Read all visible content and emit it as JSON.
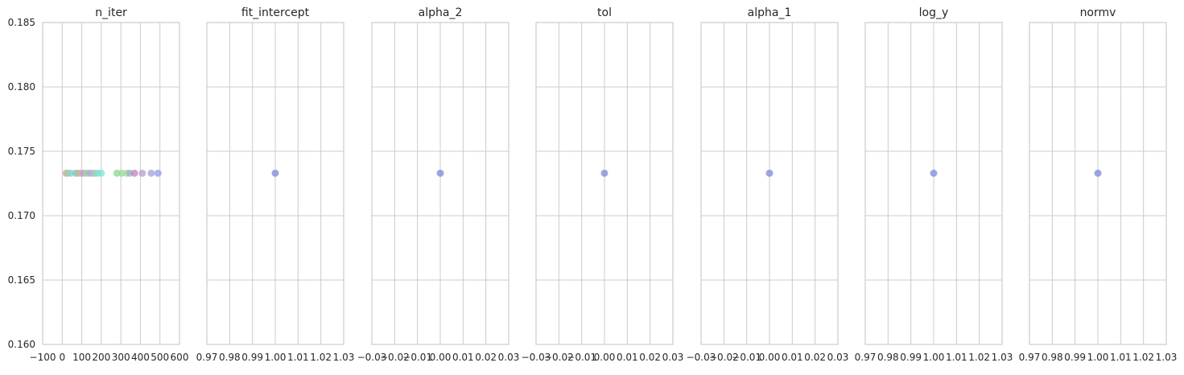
{
  "chart_data": [
    {
      "type": "scatter",
      "title": "n_iter",
      "xlim": [
        -100,
        600
      ],
      "xticks": [
        -100,
        0,
        100,
        200,
        300,
        400,
        500,
        600
      ],
      "xticklabels": [
        "−100",
        "0",
        "100",
        "200",
        "300",
        "400",
        "500",
        "600"
      ],
      "ylim": [
        0.16,
        0.185
      ],
      "yticks": [
        0.16,
        0.165,
        0.17,
        0.175,
        0.18,
        0.185
      ],
      "yticklabels": [
        "0.160",
        "0.165",
        "0.170",
        "0.175",
        "0.180",
        "0.185"
      ],
      "grid": true,
      "points": [
        {
          "x": 20,
          "y": 0.1733,
          "color": "#e09a9a"
        },
        {
          "x": 30,
          "y": 0.1733,
          "color": "#9ad0a0"
        },
        {
          "x": 45,
          "y": 0.1733,
          "color": "#7fd9c0"
        },
        {
          "x": 70,
          "y": 0.1733,
          "color": "#9ab0e0"
        },
        {
          "x": 80,
          "y": 0.1733,
          "color": "#8ad88a"
        },
        {
          "x": 95,
          "y": 0.1733,
          "color": "#e0a6a6"
        },
        {
          "x": 110,
          "y": 0.1733,
          "color": "#c09ad8"
        },
        {
          "x": 125,
          "y": 0.1733,
          "color": "#a6d68a"
        },
        {
          "x": 140,
          "y": 0.1733,
          "color": "#8ab8e0"
        },
        {
          "x": 155,
          "y": 0.1733,
          "color": "#d8a0c8"
        },
        {
          "x": 170,
          "y": 0.1733,
          "color": "#8ad8b8"
        },
        {
          "x": 185,
          "y": 0.1733,
          "color": "#7fe0d0"
        },
        {
          "x": 200,
          "y": 0.1733,
          "color": "#80e6d8"
        },
        {
          "x": 280,
          "y": 0.1733,
          "color": "#8ad88a"
        },
        {
          "x": 305,
          "y": 0.1733,
          "color": "#9ad89a"
        },
        {
          "x": 330,
          "y": 0.1733,
          "color": "#a0d8a0"
        },
        {
          "x": 345,
          "y": 0.1733,
          "color": "#9ab0c8"
        },
        {
          "x": 370,
          "y": 0.1733,
          "color": "#c080c0"
        },
        {
          "x": 410,
          "y": 0.1733,
          "color": "#b0a0c8"
        },
        {
          "x": 455,
          "y": 0.1733,
          "color": "#a0a0e0"
        },
        {
          "x": 490,
          "y": 0.1733,
          "color": "#9a9ae8"
        }
      ]
    },
    {
      "type": "scatter",
      "title": "fit_intercept",
      "xlim": [
        0.97,
        1.03
      ],
      "xticks": [
        0.97,
        0.98,
        0.99,
        1.0,
        1.01,
        1.02,
        1.03
      ],
      "xticklabels": [
        "0.97",
        "0.98",
        "0.99",
        "1.00",
        "1.01",
        "1.02",
        "1.03"
      ],
      "ylim": [
        0.16,
        0.185
      ],
      "yticks": [
        0.16,
        0.165,
        0.17,
        0.175,
        0.18,
        0.185
      ],
      "grid": true,
      "points": [
        {
          "x": 1.0,
          "y": 0.1733,
          "color": "#7b88d8"
        }
      ]
    },
    {
      "type": "scatter",
      "title": "alpha_2",
      "xlim": [
        -0.03,
        0.03
      ],
      "xticks": [
        -0.03,
        -0.02,
        -0.01,
        0.0,
        0.01,
        0.02,
        0.03
      ],
      "xticklabels": [
        "−0.03",
        "−0.02",
        "−0.01",
        "0.00",
        "0.01",
        "0.02",
        "0.03"
      ],
      "ylim": [
        0.16,
        0.185
      ],
      "yticks": [
        0.16,
        0.165,
        0.17,
        0.175,
        0.18,
        0.185
      ],
      "grid": true,
      "points": [
        {
          "x": 0.0,
          "y": 0.1733,
          "color": "#7b88d8"
        }
      ]
    },
    {
      "type": "scatter",
      "title": "tol",
      "xlim": [
        -0.03,
        0.03
      ],
      "xticks": [
        -0.03,
        -0.02,
        -0.01,
        0.0,
        0.01,
        0.02,
        0.03
      ],
      "xticklabels": [
        "−0.03",
        "−0.02",
        "−0.01",
        "0.00",
        "0.01",
        "0.02",
        "0.03"
      ],
      "ylim": [
        0.16,
        0.185
      ],
      "yticks": [
        0.16,
        0.165,
        0.17,
        0.175,
        0.18,
        0.185
      ],
      "grid": true,
      "points": [
        {
          "x": 0.0,
          "y": 0.1733,
          "color": "#7b88d8"
        }
      ]
    },
    {
      "type": "scatter",
      "title": "alpha_1",
      "xlim": [
        -0.03,
        0.03
      ],
      "xticks": [
        -0.03,
        -0.02,
        -0.01,
        0.0,
        0.01,
        0.02,
        0.03
      ],
      "xticklabels": [
        "−0.03",
        "−0.02",
        "−0.01",
        "0.00",
        "0.01",
        "0.02",
        "0.03"
      ],
      "ylim": [
        0.16,
        0.185
      ],
      "yticks": [
        0.16,
        0.165,
        0.17,
        0.175,
        0.18,
        0.185
      ],
      "grid": true,
      "points": [
        {
          "x": 0.0,
          "y": 0.1733,
          "color": "#7b88d8"
        }
      ]
    },
    {
      "type": "scatter",
      "title": "log_y",
      "xlim": [
        0.97,
        1.03
      ],
      "xticks": [
        0.97,
        0.98,
        0.99,
        1.0,
        1.01,
        1.02,
        1.03
      ],
      "xticklabels": [
        "0.97",
        "0.98",
        "0.99",
        "1.00",
        "1.01",
        "1.02",
        "1.03"
      ],
      "ylim": [
        0.16,
        0.185
      ],
      "yticks": [
        0.16,
        0.165,
        0.17,
        0.175,
        0.18,
        0.185
      ],
      "grid": true,
      "points": [
        {
          "x": 1.0,
          "y": 0.1733,
          "color": "#7b88d8"
        }
      ]
    },
    {
      "type": "scatter",
      "title": "normv",
      "xlim": [
        0.97,
        1.03
      ],
      "xticks": [
        0.97,
        0.98,
        0.99,
        1.0,
        1.01,
        1.02,
        1.03
      ],
      "xticklabels": [
        "0.97",
        "0.98",
        "0.99",
        "1.00",
        "1.01",
        "1.02",
        "1.03"
      ],
      "ylim": [
        0.16,
        0.185
      ],
      "yticks": [
        0.16,
        0.165,
        0.17,
        0.175,
        0.18,
        0.185
      ],
      "grid": true,
      "points": [
        {
          "x": 1.0,
          "y": 0.1733,
          "color": "#7b88d8"
        }
      ]
    }
  ],
  "colors": {
    "grid": "#cccccc",
    "spine": "#cccccc",
    "text": "#262626"
  }
}
